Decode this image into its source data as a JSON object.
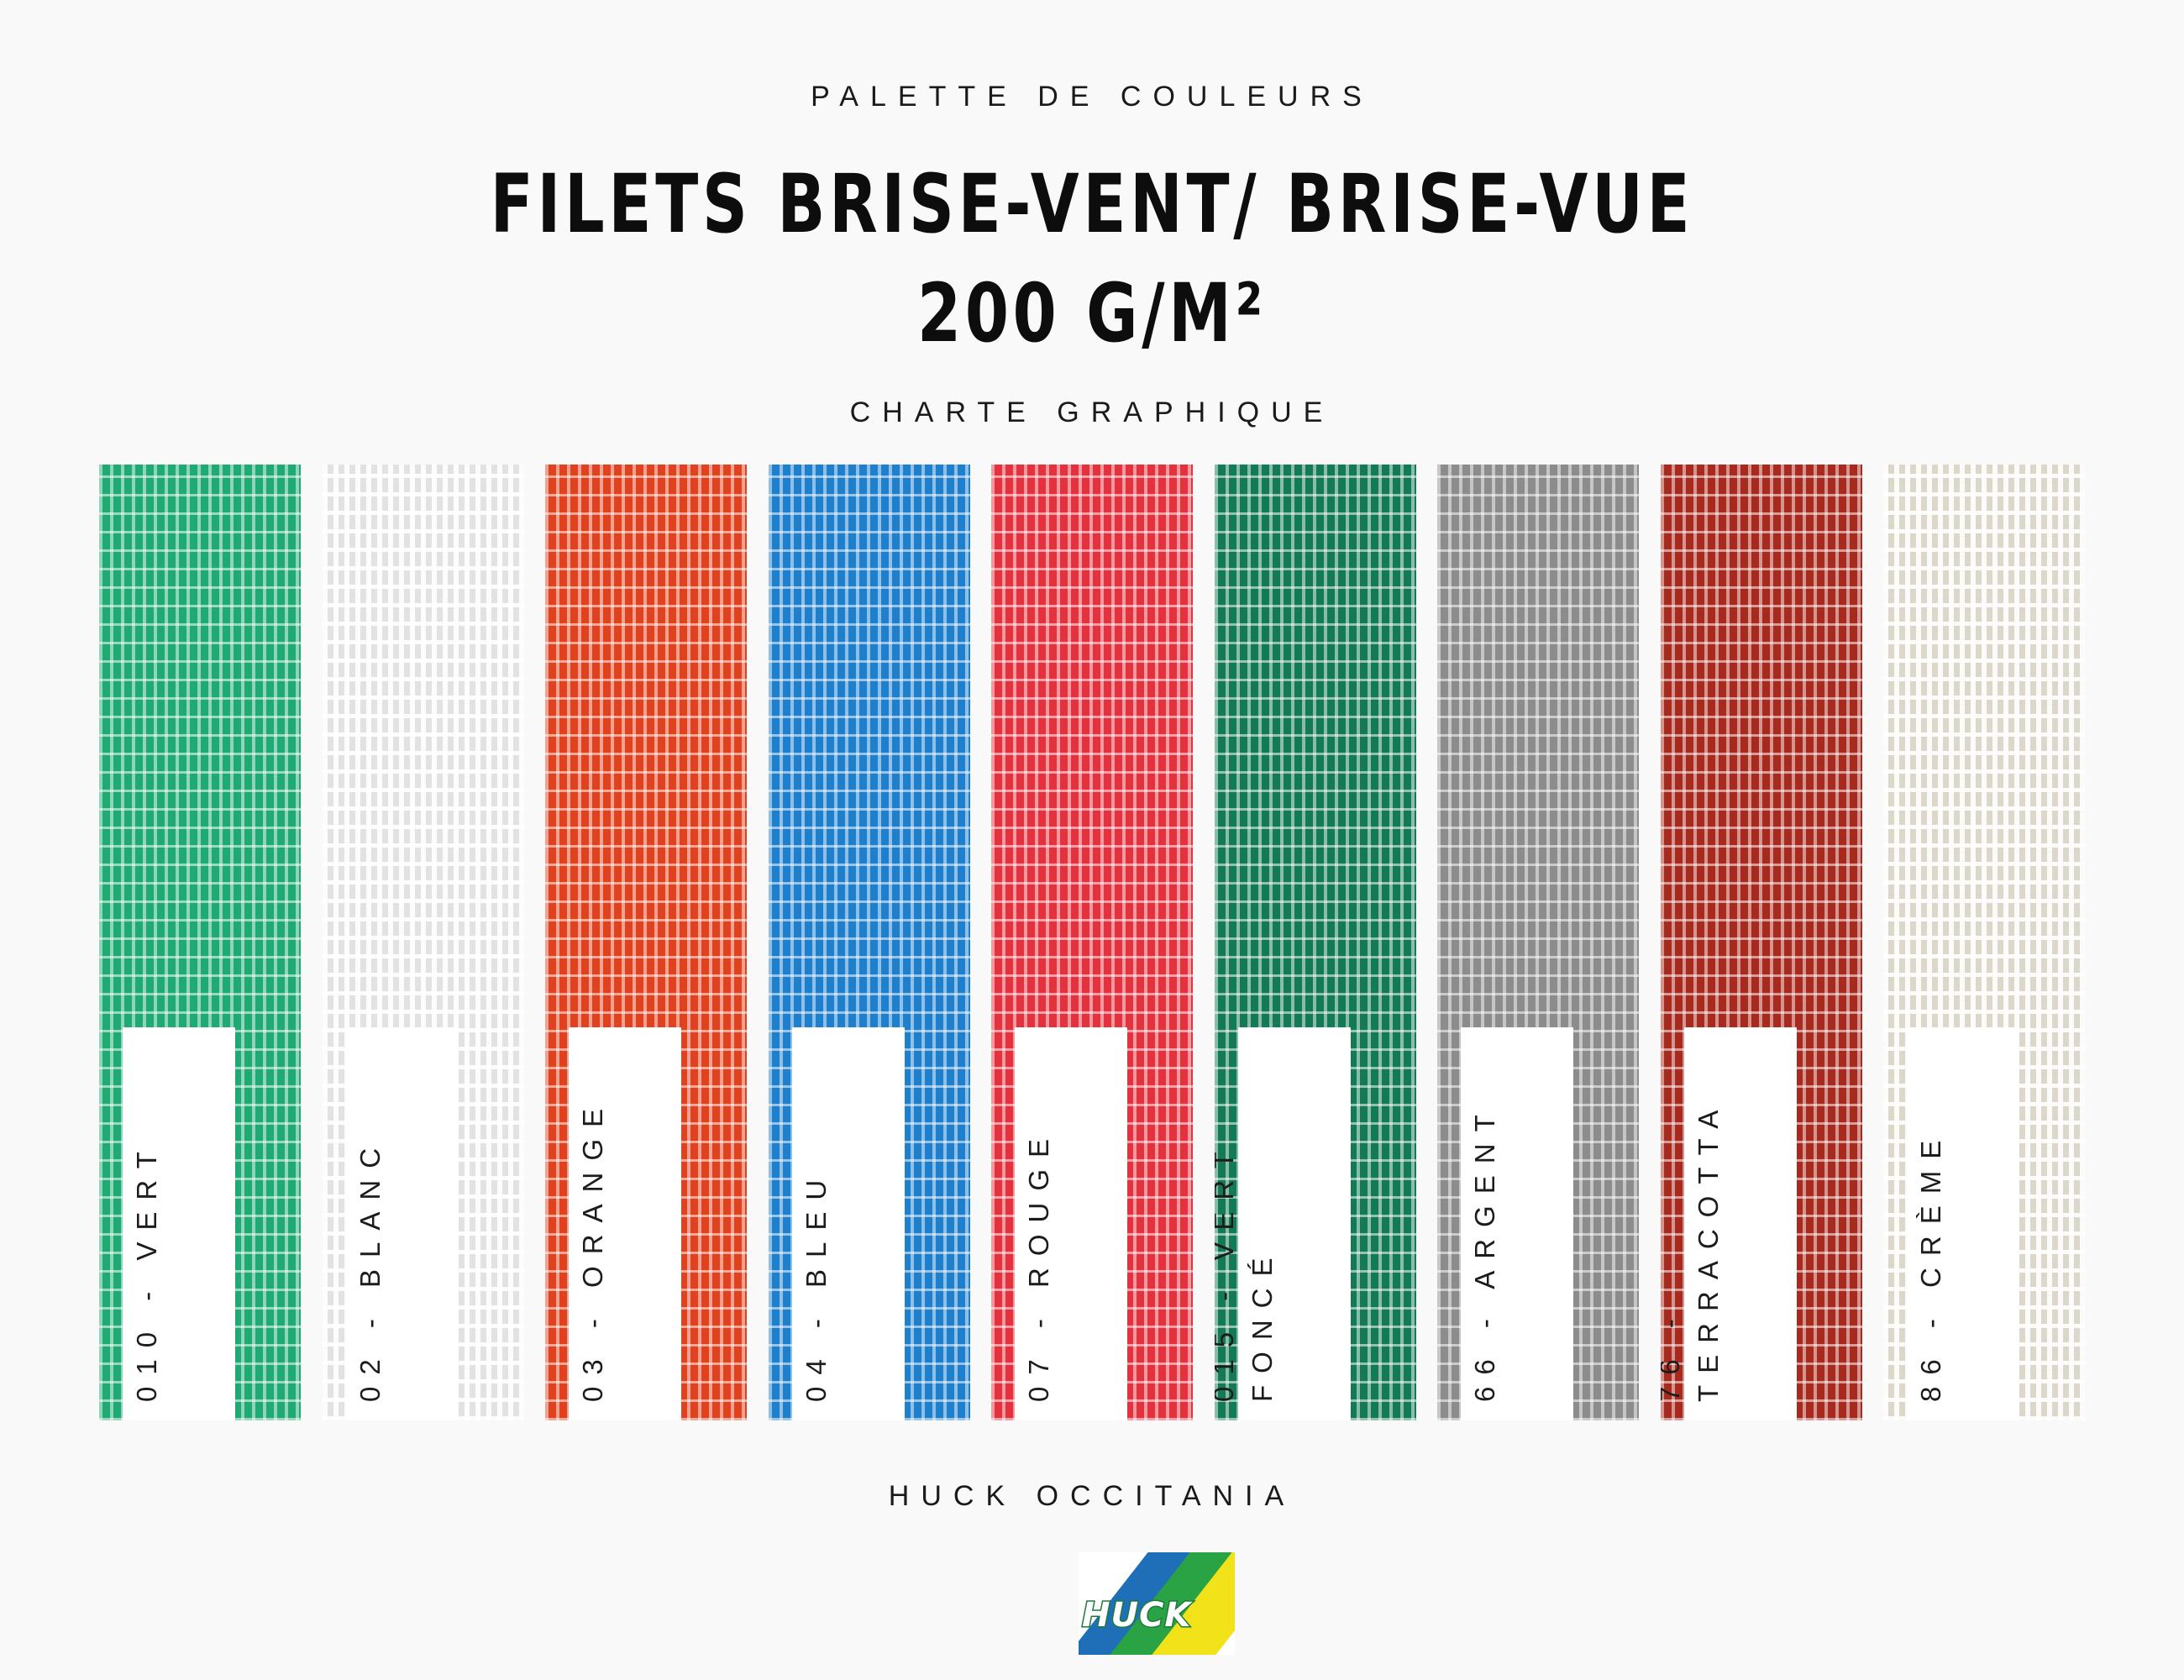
{
  "header": {
    "kicker": "PALETTE DE COULEURS",
    "title_line1": "FILETS BRISE-VENT/ BRISE-VUE",
    "title_line2": "200 G/M²",
    "section": "CHARTE GRAPHIQUE"
  },
  "swatches": [
    {
      "label": "010 - VERT",
      "color": "#1faa74"
    },
    {
      "label": "02 - BLANC",
      "color": "#e2e2e2"
    },
    {
      "label": "03 - ORANGE",
      "color": "#e0421f"
    },
    {
      "label": "04 - BLEU",
      "color": "#1e7fcc"
    },
    {
      "label": "07 - ROUGE",
      "color": "#e3323e"
    },
    {
      "label": "015 - VERT FONCÉ",
      "color": "#127a55"
    },
    {
      "label": "66 - ARGENT",
      "color": "#8c8c8c"
    },
    {
      "label": "76 - TERRACOTTA",
      "color": "#a82a1e"
    },
    {
      "label": "86 - CRÈME",
      "color": "#dcd7cb"
    }
  ],
  "footer": {
    "brand": "HUCK OCCITANIA",
    "logo_text": "HUCK",
    "logo_colors": [
      "#1f6fb8",
      "#2aa345",
      "#f2e21a"
    ]
  }
}
